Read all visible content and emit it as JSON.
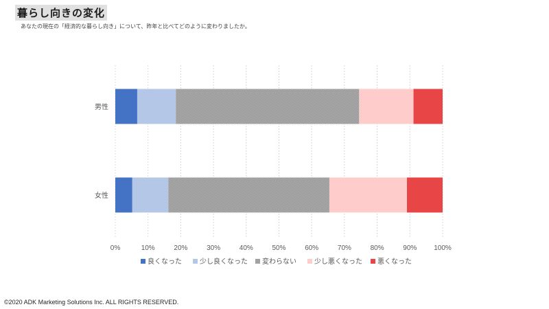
{
  "header": {
    "title": "暮らし向きの変化",
    "subtitle": "あなたの現在の「経済的な暮らし向き」について、昨年と比べてどのように変わりましたか。"
  },
  "footer": {
    "copyright": "©2020 ADK Marketing Solutions Inc. ALL RIGHTS RESERVED."
  },
  "chart_data": {
    "type": "bar",
    "orientation": "horizontal",
    "stacked": true,
    "title": "暮らし向きの変化",
    "categories": [
      "男性",
      "女性"
    ],
    "series": [
      {
        "name": "良くなった",
        "values": [
          6.7,
          5.2
        ],
        "color": "#4472c4"
      },
      {
        "name": "少し良くなった",
        "values": [
          11.8,
          11.0
        ],
        "color": "#b4c7e7"
      },
      {
        "name": "変わらない",
        "values": [
          56.0,
          49.2
        ],
        "color": "#a0a0a0",
        "pattern": "dotted"
      },
      {
        "name": "少し悪くなった",
        "values": [
          16.6,
          23.7
        ],
        "color": "#ffcccc"
      },
      {
        "name": "悪くなった",
        "values": [
          8.9,
          10.9
        ],
        "color": "#e84646"
      }
    ],
    "xlim": [
      0,
      100
    ],
    "x_ticks": [
      "0%",
      "10%",
      "20%",
      "30%",
      "40%",
      "50%",
      "60%",
      "70%",
      "80%",
      "90%",
      "100%"
    ],
    "grid": true,
    "legend": "bottom"
  }
}
